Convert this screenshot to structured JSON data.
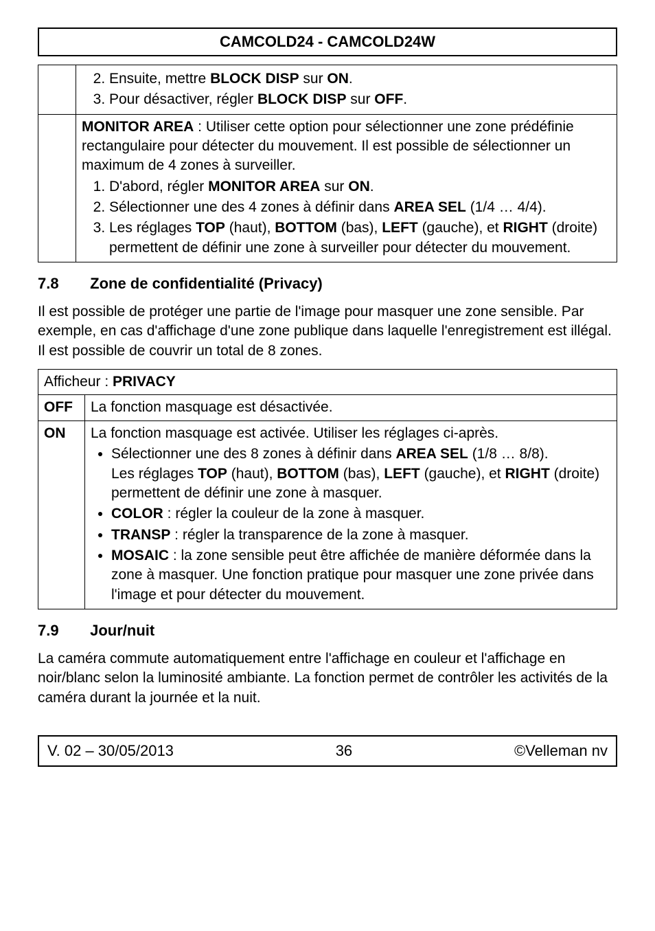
{
  "header": {
    "title": "CAMCOLD24 - CAMCOLD24W"
  },
  "topTable": {
    "row1": {
      "item2_prefix": "Ensuite, mettre ",
      "item2_bold": "BLOCK DISP",
      "item2_mid": " sur ",
      "item2_bold2": "ON",
      "item2_suffix": ".",
      "item3_prefix": "Pour désactiver, régler ",
      "item3_bold": "BLOCK DISP",
      "item3_mid": " sur ",
      "item3_bold2": "OFF",
      "item3_suffix": "."
    },
    "row2": {
      "intro_bold": "MONITOR AREA",
      "intro_text": " : Utiliser cette option pour sélectionner une zone prédéfinie rectangulaire pour détecter du mouvement. Il est possible de sélectionner un maximum de 4 zones à surveiller.",
      "item1_prefix": "D'abord, régler ",
      "item1_bold": "MONITOR AREA",
      "item1_mid": " sur ",
      "item1_bold2": "ON",
      "item1_suffix": ".",
      "item2_prefix": "Sélectionner une des 4 zones à définir dans ",
      "item2_bold": "AREA SEL",
      "item2_suffix": " (1/4 … 4/4).",
      "item3_prefix": "Les réglages ",
      "item3_b1": "TOP",
      "item3_t1": " (haut), ",
      "item3_b2": "BOTTOM",
      "item3_t2": " (bas), ",
      "item3_b3": "LEFT",
      "item3_t3": " (gauche), et ",
      "item3_b4": "RIGHT",
      "item3_t4": " (droite) permettent de définir une zone à surveiller pour détecter du mouvement."
    }
  },
  "section78": {
    "num": "7.8",
    "title": "Zone de confidentialité (Privacy)",
    "body": "Il est possible de protéger une partie de l'image pour masquer une zone sensible. Par exemple, en cas d'affichage d'une zone publique dans laquelle l'enregistrement est illégal. Il est possible de couvrir un total de 8 zones."
  },
  "privacyTable": {
    "header_prefix": "Afficheur : ",
    "header_bold": "PRIVACY",
    "off_label": "OFF",
    "off_text": "La fonction masquage est désactivée.",
    "on_label": "ON",
    "on_intro": "La fonction masquage est activée. Utiliser les réglages ci-après.",
    "bullet1_prefix": "Sélectionner une des 8 zones à définir dans ",
    "bullet1_bold": "AREA SEL",
    "bullet1_suffix": " (1/8 … 8/8).",
    "bullet1_line2_prefix": "Les réglages ",
    "bullet1_b1": "TOP",
    "bullet1_t1": " (haut), ",
    "bullet1_b2": "BOTTOM",
    "bullet1_t2": " (bas), ",
    "bullet1_b3": "LEFT",
    "bullet1_t3": " (gauche), et ",
    "bullet1_b4": "RIGHT",
    "bullet1_t4": " (droite) permettent de définir une zone à masquer.",
    "bullet2_bold": "COLOR",
    "bullet2_text": " : régler la couleur de la zone à masquer.",
    "bullet3_bold": "TRANSP",
    "bullet3_text": " : régler la transparence de la zone à masquer.",
    "bullet4_bold": "MOSAIC",
    "bullet4_text": " : la zone sensible peut être affichée de manière déformée dans la zone à masquer. Une fonction pratique pour masquer une zone privée dans l'image et pour détecter du mouvement."
  },
  "section79": {
    "num": "7.9",
    "title": "Jour/nuit",
    "body": "La caméra commute automatiquement entre l'affichage en couleur et l'affichage en noir/blanc selon la luminosité ambiante. La fonction permet de contrôler les activités de la caméra durant la journée et la nuit."
  },
  "footer": {
    "version": "V. 02 – 30/05/2013",
    "page": "36",
    "copyright": "©Velleman nv"
  }
}
